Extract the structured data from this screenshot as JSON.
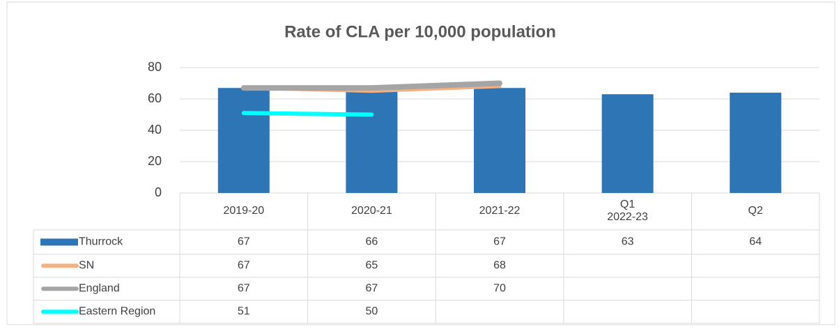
{
  "chart_data": {
    "type": "bar",
    "title": "Rate of CLA per 10,000 population",
    "categories": [
      "2019-20",
      "2020-21",
      "2021-22",
      "Q1\n2022-23",
      "Q2"
    ],
    "series": [
      {
        "name": "Thurrock",
        "type": "bar",
        "color": "#2e75b6",
        "values": [
          67,
          66,
          67,
          63,
          64
        ]
      },
      {
        "name": "SN",
        "type": "line",
        "color": "#f4b183",
        "values": [
          67,
          65,
          68,
          null,
          null
        ]
      },
      {
        "name": "England",
        "type": "line",
        "color": "#a5a5a5",
        "values": [
          67,
          67,
          70,
          null,
          null
        ]
      },
      {
        "name": "Eastern Region",
        "type": "line",
        "color": "#00ffff",
        "values": [
          51,
          50,
          null,
          null,
          null
        ]
      }
    ],
    "ylim": [
      0,
      80
    ],
    "yticks": [
      0,
      20,
      40,
      60,
      80
    ],
    "grid": true
  }
}
